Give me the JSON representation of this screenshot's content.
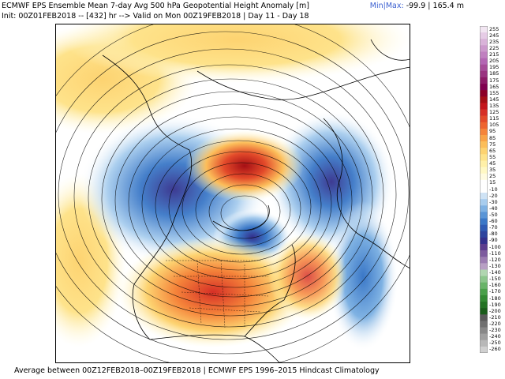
{
  "header": {
    "title": "ECMWF EPS Ensemble Mean 7-day Avg 500 hPa Geopotential Height Anomaly [m]",
    "init_line": "Init: 00Z01FEB2018 -- [432] hr --> Valid on Mon 00Z19FEB2018 | Day 11 - Day 18",
    "minmax_label": "Min|Max:",
    "minmax_value": "-99.9 | 165.4 m"
  },
  "footer": {
    "text": "Average between 00Z12FEB2018–00Z19FEB2018 | ECMWF EPS 1996–2015 Hindcast Climatology"
  },
  "colorbar": {
    "labels": [
      "255",
      "245",
      "235",
      "225",
      "215",
      "205",
      "195",
      "185",
      "175",
      "165",
      "155",
      "145",
      "135",
      "125",
      "115",
      "105",
      "95",
      "85",
      "75",
      "65",
      "55",
      "45",
      "35",
      "25",
      "15",
      "-10",
      "-20",
      "-30",
      "-40",
      "-50",
      "-60",
      "-70",
      "-80",
      "-90",
      "-100",
      "-110",
      "-120",
      "-130",
      "-140",
      "-150",
      "-160",
      "-170",
      "-180",
      "-190",
      "-200",
      "-210",
      "-220",
      "-230",
      "-240",
      "-250",
      "-260"
    ],
    "colors": [
      "#f2e6f2",
      "#e6cce6",
      "#d9b3d9",
      "#cc99cc",
      "#c080c0",
      "#b366b3",
      "#a64d99",
      "#993380",
      "#8c1a66",
      "#800050",
      "#8c0026",
      "#a50f15",
      "#c4161c",
      "#d62f26",
      "#e34a2a",
      "#ee6530",
      "#f5843a",
      "#f9a347",
      "#fcbe5a",
      "#fdd371",
      "#fee38b",
      "#fff0a8",
      "#fff8c4",
      "#fffbe0",
      "#ffffff",
      "#ffffff",
      "#cfe3f5",
      "#a8cdee",
      "#7fb2e3",
      "#5a95d6",
      "#3b78c7",
      "#2f5cb4",
      "#2d449e",
      "#33308c",
      "#5c3d8e",
      "#7d5b9e",
      "#9c7db2",
      "#b8a0c4",
      "#b0d6b0",
      "#8cc68c",
      "#69b469",
      "#4aa04a",
      "#338a33",
      "#237323",
      "#1a5c1a",
      "#5a5a5a",
      "#707070",
      "#888888",
      "#a0a0a0",
      "#b8b8b8",
      "#d0d0d0"
    ]
  }
}
